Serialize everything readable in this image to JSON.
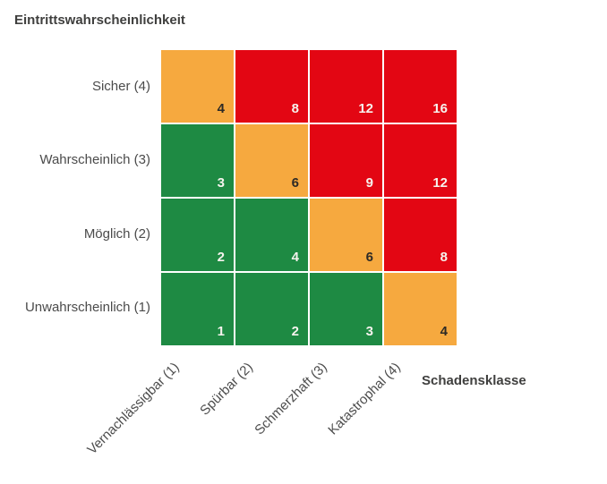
{
  "title": "Eintrittswahrscheinlichkeit",
  "x_axis_title": "Schadensklasse",
  "colors": {
    "green": "#1e8a43",
    "orange": "#f6a93f",
    "red": "#e30613",
    "number_light": "#f6f3ee",
    "number_dark": "#2d2a26",
    "label_text": "#4b4b4b",
    "title_text": "#3f3f3e",
    "background": "#ffffff"
  },
  "chart_data": {
    "type": "heatmap",
    "title": "Eintrittswahrscheinlichkeit",
    "xlabel": "Schadensklasse",
    "ylabel": "Eintrittswahrscheinlichkeit",
    "x_categories": [
      "Vernachlässigbar (1)",
      "Spürbar (2)",
      "Schmerzhaft (3)",
      "Katastrophal (4)"
    ],
    "y_categories": [
      "Sicher (4)",
      "Wahrscheinlich (3)",
      "Möglich (2)",
      "Unwahrscheinlich (1)"
    ],
    "rows": [
      {
        "label": "Sicher (4)",
        "values": [
          4,
          8,
          12,
          16
        ],
        "cell_colors": [
          "orange",
          "red",
          "red",
          "red"
        ]
      },
      {
        "label": "Wahrscheinlich (3)",
        "values": [
          3,
          6,
          9,
          12
        ],
        "cell_colors": [
          "green",
          "orange",
          "red",
          "red"
        ]
      },
      {
        "label": "Möglich (2)",
        "values": [
          2,
          4,
          6,
          8
        ],
        "cell_colors": [
          "green",
          "green",
          "orange",
          "red"
        ]
      },
      {
        "label": "Unwahrscheinlich (1)",
        "values": [
          1,
          2,
          3,
          4
        ],
        "cell_colors": [
          "green",
          "green",
          "green",
          "orange"
        ]
      }
    ],
    "legend": "off",
    "grid": "off",
    "cell_gap_color": "#ffffff"
  }
}
